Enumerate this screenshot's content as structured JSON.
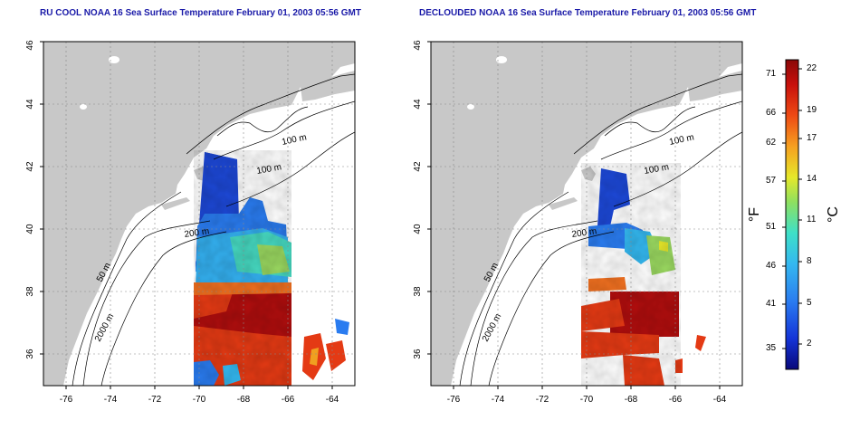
{
  "panels": [
    {
      "title": "RU COOL NOAA 16 Sea Surface Temperature February 01, 2003 05:56 GMT",
      "contours": [
        {
          "label": "100 m"
        },
        {
          "label": "100 m"
        },
        {
          "label": "200 m"
        },
        {
          "label": "50 m"
        },
        {
          "label": "2000 m"
        }
      ]
    },
    {
      "title": "DECLOUDED NOAA 16 Sea Surface Temperature February 01, 2003 05:56 GMT",
      "contours": [
        {
          "label": "100 m"
        },
        {
          "label": "100 m"
        },
        {
          "label": "200 m"
        },
        {
          "label": "50 m"
        },
        {
          "label": "2000 m"
        }
      ]
    }
  ],
  "map": {
    "lon_range": [
      -77,
      -63
    ],
    "lat_range": [
      35,
      46
    ],
    "x_ticks": [
      "-76",
      "-74",
      "-72",
      "-70",
      "-68",
      "-66",
      "-64"
    ],
    "y_ticks": [
      "36",
      "38",
      "40",
      "42",
      "44",
      "46"
    ],
    "land_color": "#c8c8c8",
    "sea_color": "#ffffff",
    "grid": "dotted"
  },
  "colorbar": {
    "fahrenheit_ticks": [
      "71",
      "66",
      "62",
      "57",
      "51",
      "46",
      "41",
      "35"
    ],
    "celsius_ticks": [
      "22",
      "19",
      "17",
      "14",
      "11",
      "8",
      "5",
      "2"
    ],
    "fahrenheit_unit": "°F",
    "celsius_unit": "°C",
    "colors": [
      "#08087a",
      "#1434d8",
      "#2a7cf0",
      "#34b8f0",
      "#3ee0c8",
      "#8ee060",
      "#e6e82a",
      "#f6a020",
      "#ee4a14",
      "#c8100c",
      "#8a0808"
    ]
  }
}
